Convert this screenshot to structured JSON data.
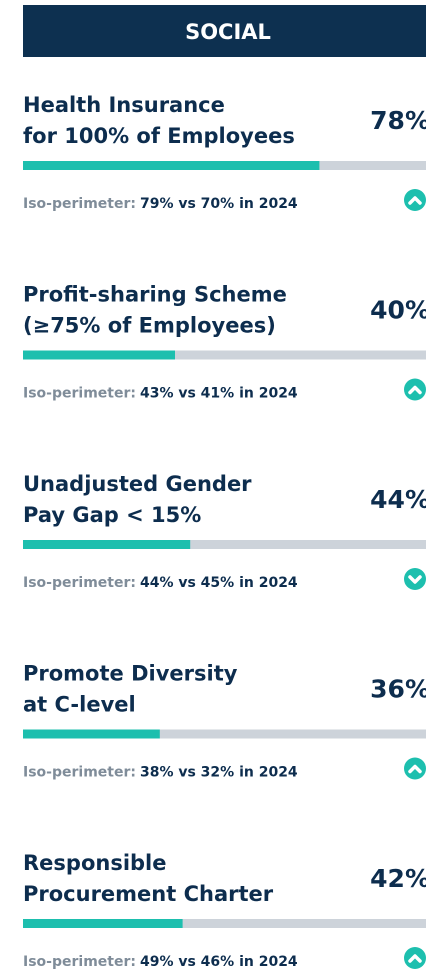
{
  "header": {
    "title": "SOCIAL"
  },
  "xlim": [
    0,
    100
  ],
  "items": [
    {
      "title": [
        "Health Insurance",
        "for 100% of Employees"
      ],
      "value": 78,
      "value_label": "78%",
      "note_label": "Iso-perimeter:",
      "note_value": "79% vs 70% in 2024",
      "trend": "up"
    },
    {
      "title": [
        "Profit-sharing Scheme",
        "(≥75% of Employees)"
      ],
      "value": 40,
      "value_label": "40%",
      "note_label": "Iso-perimeter:",
      "note_value": "43% vs 41% in 2024",
      "trend": "up"
    },
    {
      "title": [
        "Unadjusted Gender",
        "Pay Gap < 15%"
      ],
      "value": 44,
      "value_label": "44%",
      "note_label": "Iso-perimeter:",
      "note_value": "44% vs 45% in 2024",
      "trend": "down"
    },
    {
      "title": [
        "Promote Diversity",
        "at C-level"
      ],
      "value": 36,
      "value_label": "36%",
      "note_label": "Iso-perimeter:",
      "note_value": "38% vs 32% in 2024",
      "trend": "up"
    },
    {
      "title": [
        "Responsible",
        "Procurement Charter"
      ],
      "value": 42,
      "value_label": "42%",
      "note_label": "Iso-perimeter:",
      "note_value": "49% vs 46% in 2024",
      "trend": "up"
    }
  ]
}
